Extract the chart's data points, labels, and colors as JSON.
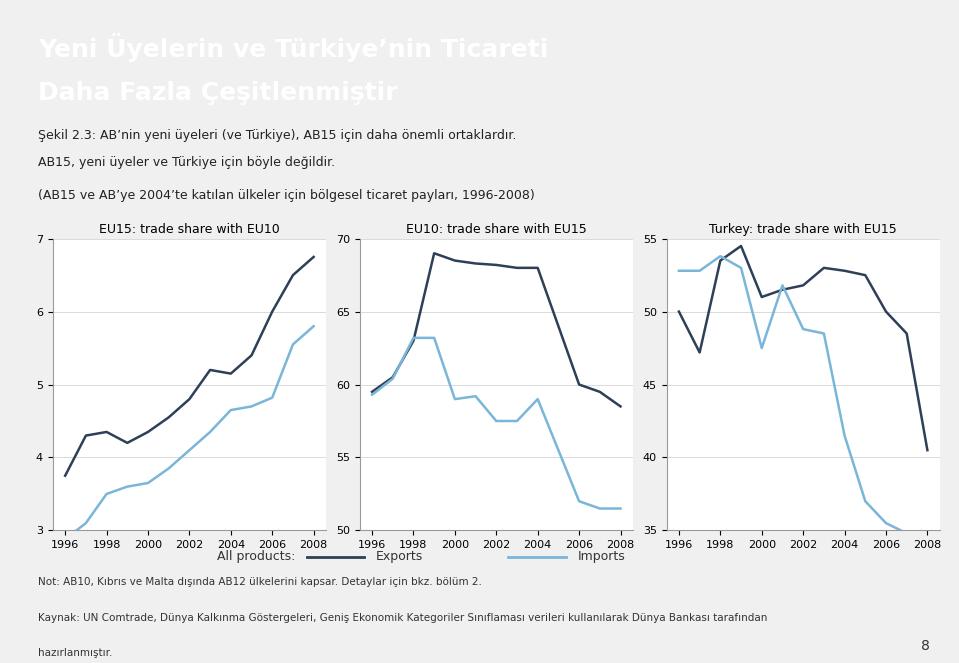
{
  "years": [
    1996,
    1997,
    1998,
    1999,
    2000,
    2001,
    2002,
    2003,
    2004,
    2005,
    2006,
    2007,
    2008
  ],
  "eu15_exports": [
    3.75,
    4.3,
    4.35,
    4.2,
    4.35,
    4.55,
    4.8,
    5.2,
    5.15,
    5.4,
    6.0,
    6.5,
    6.75
  ],
  "eu15_imports": [
    2.88,
    3.1,
    3.5,
    3.6,
    3.65,
    3.85,
    4.1,
    4.35,
    4.65,
    4.7,
    4.82,
    5.55,
    5.8
  ],
  "eu10_exports": [
    59.5,
    60.5,
    63.0,
    69.0,
    68.5,
    68.3,
    68.2,
    68.0,
    68.0,
    64.0,
    60.0,
    59.5,
    58.5
  ],
  "eu10_imports": [
    59.3,
    60.4,
    63.2,
    63.2,
    59.0,
    59.2,
    57.5,
    57.5,
    59.0,
    55.5,
    52.0,
    51.5,
    51.5
  ],
  "turkey_exports": [
    50.0,
    47.2,
    53.5,
    54.5,
    51.0,
    51.5,
    51.8,
    53.0,
    52.8,
    52.5,
    50.0,
    48.5,
    40.5
  ],
  "turkey_imports": [
    52.8,
    52.8,
    53.8,
    53.0,
    47.5,
    51.8,
    48.8,
    48.5,
    41.5,
    37.0,
    35.5,
    34.8,
    34.5
  ],
  "dark_color": "#2e4057",
  "light_color": "#7ab6d8",
  "background_color": "#f0f0f0",
  "plot_bg": "#ffffff",
  "title_line1": "Yeni Üyelerin ve Türkiye’nin Ticareti",
  "title_line2": "Daha Fazla Çeşitlenmiştir",
  "subtitle1": "Şekil 2.3: AB’nin yeni üyeleri (ve Türkiye), AB15 için daha önemli ortaklardır.",
  "subtitle2": "AB15, yeni üyeler ve Türkiye için böyle değildir.",
  "subtitle3": "(AB15 ve AB’ye 2004’te katılan ülkeler için bölgesel ticaret payları, 1996-2008)",
  "panel1_title": "EU15: trade share with EU10",
  "panel2_title": "EU10: trade share with EU15",
  "panel3_title": "Turkey: trade share with EU15",
  "panel1_ylim": [
    3,
    7
  ],
  "panel1_yticks": [
    3,
    4,
    5,
    6,
    7
  ],
  "panel2_ylim": [
    50,
    70
  ],
  "panel2_yticks": [
    50,
    55,
    60,
    65,
    70
  ],
  "panel3_ylim": [
    35,
    55
  ],
  "panel3_yticks": [
    35,
    40,
    45,
    50,
    55
  ],
  "legend_labels": [
    "All products:",
    "Exports",
    "Imports"
  ],
  "footnote1": "Not: AB10, Kıbrıs ve Malta dışında AB12 ülkelerini kapsar. Detaylar için bkz. bölüm 2.",
  "footnote2": "Kaynak: UN Comtrade, Dünya Kalkınma Göstergeleri, Geniş Ekonomik Kategoriler Sınıflaması verileri kullanılarak Dünya Bankası tarafından",
  "footnote3": "hazırlanmıştır."
}
